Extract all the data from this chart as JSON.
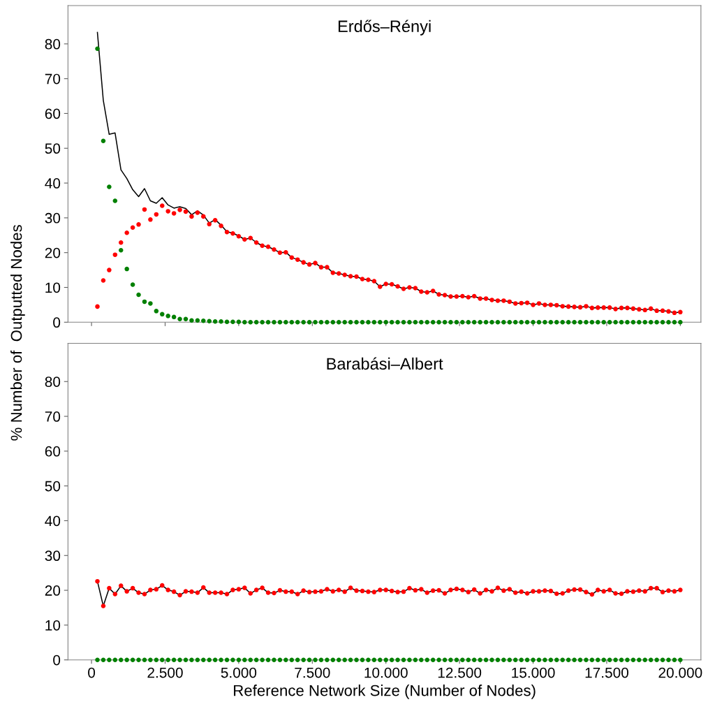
{
  "chart_data": [
    {
      "type": "scatter",
      "title": "Erdős–Rényi",
      "ylabel": "% Number of  Outputted Nodes",
      "tick_labels": "y",
      "legend": false,
      "grid": false,
      "x": [
        200,
        400,
        600,
        800,
        1000,
        1200,
        1400,
        1600,
        1800,
        2000,
        2200,
        2400,
        2600,
        2800,
        3000,
        3200,
        3400,
        3600,
        3800,
        4000,
        4200,
        4400,
        4600,
        4800,
        5000,
        5200,
        5400,
        5600,
        5800,
        6000,
        6200,
        6400,
        6600,
        6800,
        7000,
        7200,
        7400,
        7600,
        7800,
        8000,
        8200,
        8400,
        8600,
        8800,
        9000,
        9200,
        9400,
        9600,
        9800,
        10000,
        10200,
        10400,
        10600,
        10800,
        11000,
        11200,
        11400,
        11600,
        11800,
        12000,
        12200,
        12400,
        12600,
        12800,
        13000,
        13200,
        13400,
        13600,
        13800,
        14000,
        14200,
        14400,
        14600,
        14800,
        15000,
        15200,
        15400,
        15600,
        15800,
        16000,
        16200,
        16400,
        16600,
        16800,
        17000,
        17200,
        17400,
        17600,
        17800,
        18000,
        18200,
        18400,
        18600,
        18800,
        19000,
        19200,
        19400,
        19600,
        19800,
        20000
      ],
      "xlim": [
        -800,
        20700
      ],
      "xticks": [
        {
          "value": 0,
          "label": null
        },
        {
          "value": 2500,
          "label": null
        },
        {
          "value": 5000,
          "label": null
        },
        {
          "value": 7500,
          "label": null
        },
        {
          "value": 10000,
          "label": null
        },
        {
          "value": 12500,
          "label": null
        },
        {
          "value": 15000,
          "label": null
        },
        {
          "value": 17500,
          "label": null
        },
        {
          "value": 20000,
          "label": null
        }
      ],
      "ylim": [
        0,
        91
      ],
      "yticks": [
        0,
        10,
        20,
        30,
        40,
        50,
        60,
        70,
        80
      ],
      "series": [
        {
          "type": "line",
          "color": "#000000",
          "marker": "none",
          "line_style": "solid",
          "values": [
            83.3,
            63.8,
            54.0,
            54.4,
            43.8,
            41.3,
            38.1,
            36.1,
            38.4,
            34.9,
            34.2,
            35.8,
            33.7,
            32.8,
            33.2,
            32.7,
            30.9,
            32.0,
            30.8,
            28.5,
            29.5,
            27.9,
            26.0,
            25.6,
            24.8,
            23.8,
            24.2,
            22.9,
            22.0,
            21.7,
            20.9,
            20.0,
            20.1,
            18.6,
            18.0,
            17.2,
            16.6,
            17.0,
            15.8,
            15.8,
            14.2,
            14.0,
            13.6,
            13.2,
            13.1,
            12.4,
            12.2,
            11.8,
            10.2,
            11.0,
            10.9,
            10.3,
            9.6,
            10.0,
            9.8,
            8.8,
            8.6,
            9.0,
            8.0,
            7.8,
            7.4,
            7.4,
            7.5,
            7.2,
            7.5,
            6.8,
            6.8,
            6.4,
            6.2,
            6.2,
            5.9,
            5.4,
            5.5,
            5.6,
            5.0,
            5.4,
            5.0,
            5.0,
            4.9,
            4.6,
            4.5,
            4.4,
            4.3,
            4.6,
            4.1,
            4.2,
            4.2,
            4.2,
            3.8,
            4.1,
            4.1,
            3.9,
            3.7,
            3.5,
            3.9,
            3.3,
            3.3,
            3.1,
            2.7,
            2.9
          ]
        },
        {
          "color": "#ff0000",
          "marker": "circle",
          "values": [
            4.5,
            12.0,
            15.0,
            19.4,
            22.9,
            25.7,
            27.2,
            28.1,
            32.4,
            29.5,
            31.0,
            33.5,
            31.9,
            31.3,
            32.3,
            31.8,
            30.4,
            31.5,
            30.4,
            28.2,
            29.3,
            27.7,
            25.9,
            25.5,
            24.7,
            23.8,
            24.2,
            22.9,
            22.0,
            21.7,
            20.9,
            20.0,
            20.1,
            18.6,
            18.0,
            17.2,
            16.6,
            17.0,
            15.8,
            15.8,
            14.2,
            14.0,
            13.6,
            13.2,
            13.1,
            12.4,
            12.2,
            11.8,
            10.2,
            11.0,
            10.9,
            10.3,
            9.6,
            10.0,
            9.8,
            8.8,
            8.6,
            9.0,
            8.0,
            7.8,
            7.4,
            7.4,
            7.5,
            7.2,
            7.5,
            6.8,
            6.8,
            6.4,
            6.2,
            6.2,
            5.9,
            5.4,
            5.5,
            5.6,
            5.0,
            5.4,
            5.0,
            5.0,
            4.9,
            4.6,
            4.5,
            4.4,
            4.3,
            4.6,
            4.1,
            4.2,
            4.2,
            4.2,
            3.8,
            4.1,
            4.1,
            3.9,
            3.7,
            3.5,
            3.9,
            3.3,
            3.3,
            3.1,
            2.7,
            2.9
          ]
        },
        {
          "color": "#008000",
          "marker": "circle",
          "values": [
            78.6,
            52.1,
            38.9,
            34.9,
            20.7,
            15.3,
            10.8,
            7.9,
            5.9,
            5.4,
            3.2,
            2.3,
            1.8,
            1.5,
            0.9,
            0.9,
            0.5,
            0.5,
            0.4,
            0.3,
            0.2,
            0.2,
            0.1,
            0.1,
            0.1,
            0,
            0,
            0,
            0,
            0,
            0,
            0,
            0,
            0,
            0,
            0,
            0,
            0,
            0,
            0,
            0,
            0,
            0,
            0,
            0,
            0,
            0,
            0,
            0,
            0,
            0,
            0,
            0,
            0,
            0,
            0,
            0,
            0,
            0,
            0,
            0,
            0,
            0,
            0,
            0,
            0,
            0,
            0,
            0,
            0,
            0,
            0,
            0,
            0,
            0,
            0,
            0,
            0,
            0,
            0,
            0,
            0,
            0,
            0,
            0,
            0,
            0,
            0,
            0,
            0,
            0,
            0,
            0,
            0,
            0,
            0,
            0,
            0,
            0,
            0
          ]
        }
      ]
    },
    {
      "type": "scatter",
      "title": "Barabási–Albert",
      "xlabel": "Reference Network Size (Number of Nodes)",
      "legend": false,
      "grid": false,
      "x": [
        200,
        400,
        600,
        800,
        1000,
        1200,
        1400,
        1600,
        1800,
        2000,
        2200,
        2400,
        2600,
        2800,
        3000,
        3200,
        3400,
        3600,
        3800,
        4000,
        4200,
        4400,
        4600,
        4800,
        5000,
        5200,
        5400,
        5600,
        5800,
        6000,
        6200,
        6400,
        6600,
        6800,
        7000,
        7200,
        7400,
        7600,
        7800,
        8000,
        8200,
        8400,
        8600,
        8800,
        9000,
        9200,
        9400,
        9600,
        9800,
        10000,
        10200,
        10400,
        10600,
        10800,
        11000,
        11200,
        11400,
        11600,
        11800,
        12000,
        12200,
        12400,
        12600,
        12800,
        13000,
        13200,
        13400,
        13600,
        13800,
        14000,
        14200,
        14400,
        14600,
        14800,
        15000,
        15200,
        15400,
        15600,
        15800,
        16000,
        16200,
        16400,
        16600,
        16800,
        17000,
        17200,
        17400,
        17600,
        17800,
        18000,
        18200,
        18400,
        18600,
        18800,
        19000,
        19200,
        19400,
        19600,
        19800,
        20000
      ],
      "xlim": [
        -800,
        20700
      ],
      "xticks": [
        0,
        {
          "value": 2500,
          "label": "2.500"
        },
        {
          "value": 5000,
          "label": "5.000"
        },
        {
          "value": 7500,
          "label": "7.500"
        },
        {
          "value": 10000,
          "label": "10.000"
        },
        {
          "value": 12500,
          "label": "12.500"
        },
        {
          "value": 15000,
          "label": "15.000"
        },
        {
          "value": 17500,
          "label": "17.500"
        },
        {
          "value": 20000,
          "label": "20.000"
        }
      ],
      "ylim": [
        0,
        91
      ],
      "yticks": [
        0,
        10,
        20,
        30,
        40,
        50,
        60,
        70,
        80
      ],
      "series": [
        {
          "type": "line",
          "color": "#000000",
          "marker": "none",
          "line_style": "solid",
          "values": [
            22.6,
            15.5,
            20.6,
            18.9,
            21.3,
            19.7,
            20.6,
            19.3,
            18.9,
            20.1,
            20.3,
            21.4,
            20.1,
            19.6,
            18.6,
            19.7,
            19.6,
            19.3,
            20.8,
            19.3,
            19.3,
            19.3,
            18.9,
            20.1,
            20.3,
            20.7,
            19.1,
            20.1,
            20.7,
            19.3,
            19.2,
            20.0,
            19.6,
            19.6,
            18.9,
            19.9,
            19.5,
            19.6,
            19.7,
            20.3,
            19.7,
            20.1,
            19.6,
            20.7,
            19.9,
            19.8,
            19.6,
            19.5,
            20.1,
            20.1,
            19.8,
            19.5,
            19.6,
            20.6,
            20.0,
            20.3,
            19.3,
            19.9,
            20.0,
            19.1,
            20.1,
            20.4,
            20.1,
            19.5,
            20.2,
            19.1,
            20.1,
            19.7,
            20.7,
            19.9,
            20.3,
            19.3,
            19.6,
            19.1,
            19.7,
            19.7,
            19.9,
            19.8,
            19.0,
            19.1,
            19.9,
            20.2,
            20.2,
            19.5,
            18.8,
            20.1,
            19.7,
            20.1,
            19.1,
            19.0,
            19.7,
            19.6,
            19.9,
            19.7,
            20.6,
            20.6,
            19.5,
            19.9,
            19.7,
            20.1
          ]
        },
        {
          "color": "#ff0000",
          "marker": "circle",
          "values": [
            22.6,
            15.5,
            20.6,
            18.9,
            21.3,
            19.7,
            20.6,
            19.3,
            18.9,
            20.1,
            20.3,
            21.4,
            20.1,
            19.6,
            18.6,
            19.7,
            19.6,
            19.3,
            20.8,
            19.3,
            19.3,
            19.3,
            18.9,
            20.1,
            20.3,
            20.7,
            19.1,
            20.1,
            20.7,
            19.3,
            19.2,
            20.0,
            19.6,
            19.6,
            18.9,
            19.9,
            19.5,
            19.6,
            19.7,
            20.3,
            19.7,
            20.1,
            19.6,
            20.7,
            19.9,
            19.8,
            19.6,
            19.5,
            20.1,
            20.1,
            19.8,
            19.5,
            19.6,
            20.6,
            20.0,
            20.3,
            19.3,
            19.9,
            20.0,
            19.1,
            20.1,
            20.4,
            20.1,
            19.5,
            20.2,
            19.1,
            20.1,
            19.7,
            20.7,
            19.9,
            20.3,
            19.3,
            19.6,
            19.1,
            19.7,
            19.7,
            19.9,
            19.8,
            19.0,
            19.1,
            19.9,
            20.2,
            20.2,
            19.5,
            18.8,
            20.1,
            19.7,
            20.1,
            19.1,
            19.0,
            19.7,
            19.6,
            19.9,
            19.7,
            20.6,
            20.6,
            19.5,
            19.9,
            19.7,
            20.1
          ]
        },
        {
          "color": "#008000",
          "marker": "circle",
          "values": [
            0,
            0,
            0,
            0,
            0,
            0,
            0,
            0,
            0,
            0,
            0,
            0,
            0,
            0,
            0,
            0,
            0,
            0,
            0,
            0,
            0,
            0,
            0,
            0,
            0,
            0,
            0,
            0,
            0,
            0,
            0,
            0,
            0,
            0,
            0,
            0,
            0,
            0,
            0,
            0,
            0,
            0,
            0,
            0,
            0,
            0,
            0,
            0,
            0,
            0,
            0,
            0,
            0,
            0,
            0,
            0,
            0,
            0,
            0,
            0,
            0,
            0,
            0,
            0,
            0,
            0,
            0,
            0,
            0,
            0,
            0,
            0,
            0,
            0,
            0,
            0,
            0,
            0,
            0,
            0,
            0,
            0,
            0,
            0,
            0,
            0,
            0,
            0,
            0,
            0,
            0,
            0,
            0,
            0,
            0,
            0,
            0,
            0,
            0,
            0
          ]
        }
      ]
    }
  ]
}
